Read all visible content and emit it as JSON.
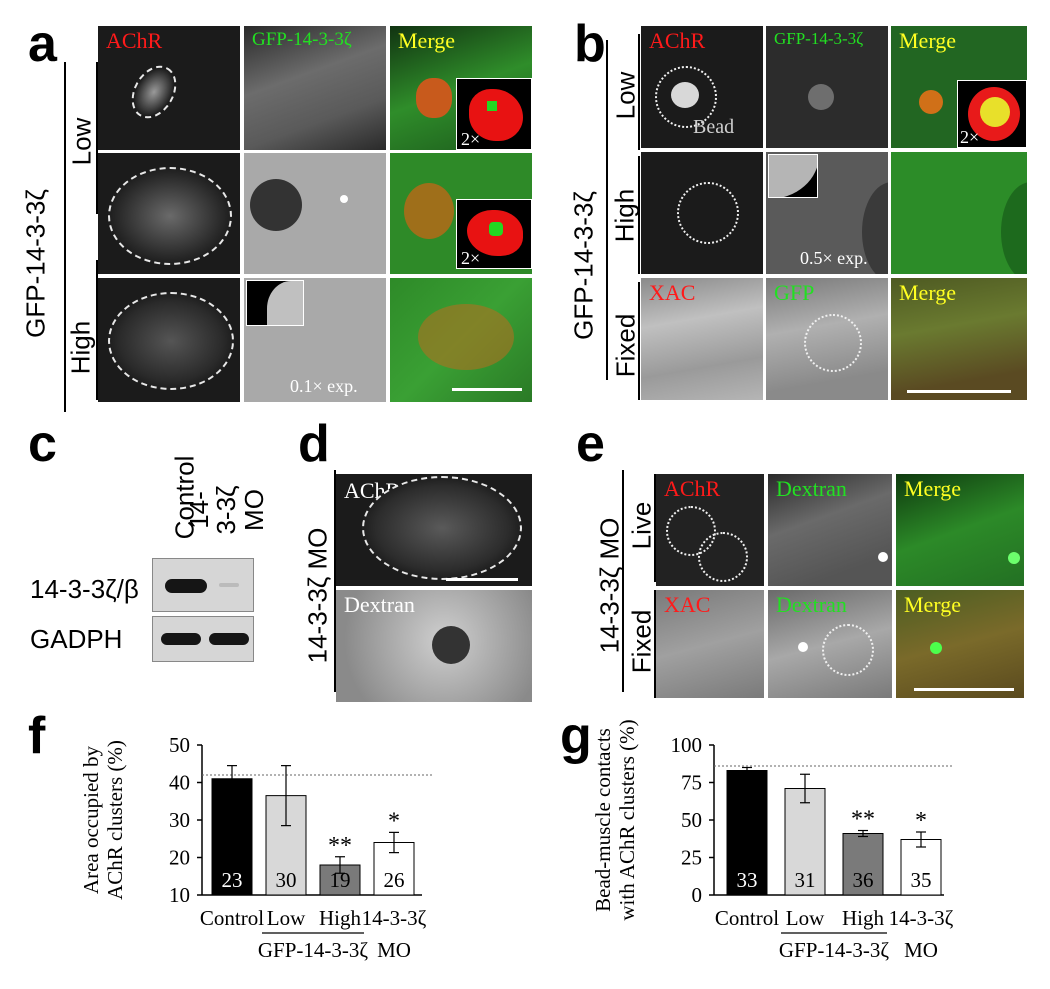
{
  "panel_a": {
    "label": "a",
    "construct": "GFP-14-3-3ζ",
    "rows": [
      "Low",
      "High"
    ],
    "columns": [
      "AChR",
      "GFP-14-3-3ζ",
      "Merge"
    ],
    "inset_mag": "2×",
    "exposure_note": "0.1× exp."
  },
  "panel_b": {
    "label": "b",
    "construct": "GFP-14-3-3ζ",
    "rows": [
      "Low",
      "High",
      "Fixed"
    ],
    "columns": [
      "AChR",
      "GFP-14-3-3ζ",
      "Merge"
    ],
    "fixed_columns": [
      "XAC",
      "GFP",
      "Merge"
    ],
    "bead_label": "Bead",
    "inset_mag": "2×",
    "exposure_note": "0.5× exp."
  },
  "panel_c": {
    "label": "c",
    "lanes": [
      "Control",
      "14-3-3ζ MO"
    ],
    "rows": [
      "14-3-3ζ/β",
      "GADPH"
    ]
  },
  "panel_d": {
    "label": "d",
    "side_label": "14-3-3ζ MO",
    "top_label": "AChR",
    "bottom_label": "Dextran"
  },
  "panel_e": {
    "label": "e",
    "side_label": "14-3-3ζ MO",
    "rows": [
      "Live",
      "Fixed"
    ],
    "live_columns": [
      "AChR",
      "Dextran",
      "Merge"
    ],
    "fixed_columns": [
      "XAC",
      "Dextran",
      "Merge"
    ]
  },
  "chart_data": [
    {
      "type": "bar",
      "panel_label": "f",
      "ylabel": "Area occupied by AChR clusters (%)",
      "ylabel_line1": "Area occupied by",
      "ylabel_line2": "AChR clusters (%)",
      "ylim": [
        10,
        50
      ],
      "yticks": [
        "10",
        "20",
        "30",
        "40",
        "50"
      ],
      "categories": [
        "Control",
        "Low",
        "High",
        "14-3-3ζ"
      ],
      "group_label": "GFP-14-3-3ζ",
      "mo_label": "MO",
      "values": [
        41,
        36.5,
        18,
        24
      ],
      "errors": [
        3.5,
        8,
        2.2,
        2.7
      ],
      "n_labels": [
        "23",
        "30",
        "19",
        "26"
      ],
      "significance": [
        "",
        "",
        "**",
        "*"
      ],
      "bar_colors": [
        "#000000",
        "#d8d8d8",
        "#7a7a7a",
        "#ffffff"
      ],
      "reference_line": 42
    },
    {
      "type": "bar",
      "panel_label": "g",
      "ylabel": "Bead-muscle contacts with AChR clusters (%)",
      "ylabel_line1": "Bead-muscle contacts",
      "ylabel_line2": "with AChR clusters (%)",
      "ylim": [
        0,
        100
      ],
      "yticks": [
        "0",
        "25",
        "50",
        "75",
        "100"
      ],
      "categories": [
        "Control",
        "Low",
        "High",
        "14-3-3ζ"
      ],
      "group_label": "GFP-14-3-3ζ",
      "mo_label": "MO",
      "values": [
        83,
        71,
        41,
        37
      ],
      "errors": [
        2,
        9.5,
        2,
        5
      ],
      "n_labels": [
        "33",
        "31",
        "36",
        "35"
      ],
      "significance": [
        "",
        "",
        "**",
        "*"
      ],
      "bar_colors": [
        "#000000",
        "#d8d8d8",
        "#7a7a7a",
        "#ffffff"
      ],
      "reference_line": 86
    }
  ]
}
